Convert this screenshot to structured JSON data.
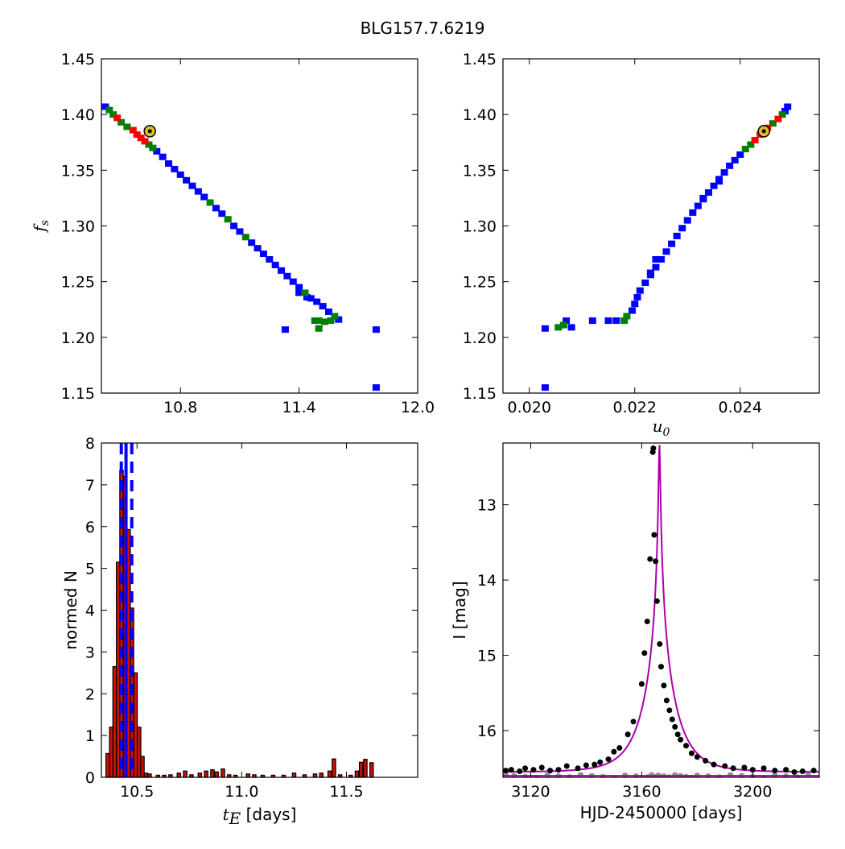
{
  "figure_title": "BLG157.7.6219",
  "chart_data": [
    {
      "id": "panel-tl",
      "type": "scatter",
      "title": "",
      "xlabel": "",
      "ylabel": "f_s",
      "ylabel_main": "f",
      "ylabel_sub": "s",
      "xlim": [
        10.4,
        12.0
      ],
      "ylim": [
        1.15,
        1.45
      ],
      "xticks": [
        10.8,
        11.4,
        12.0
      ],
      "xtick_labels": [
        "10.8",
        "11.4",
        "12.0"
      ],
      "yticks": [
        1.15,
        1.2,
        1.25,
        1.3,
        1.35,
        1.4,
        1.45
      ],
      "ytick_labels": [
        "1.15",
        "1.20",
        "1.25",
        "1.30",
        "1.35",
        "1.40",
        "1.45"
      ],
      "confidence_colors": {
        "1sigma": "#ff0000",
        "2sigma": "#008000",
        "3sigma": "#0000ff"
      },
      "best_fit_marker_color": "#e0c020",
      "best_fit": {
        "x": 10.645,
        "y": 1.385
      },
      "points": [
        {
          "x": 10.42,
          "y": 1.407,
          "c": 3
        },
        {
          "x": 10.44,
          "y": 1.404,
          "c": 2
        },
        {
          "x": 10.46,
          "y": 1.4,
          "c": 2
        },
        {
          "x": 10.48,
          "y": 1.397,
          "c": 1
        },
        {
          "x": 10.5,
          "y": 1.393,
          "c": 2
        },
        {
          "x": 10.53,
          "y": 1.389,
          "c": 2
        },
        {
          "x": 10.56,
          "y": 1.386,
          "c": 1
        },
        {
          "x": 10.58,
          "y": 1.382,
          "c": 1
        },
        {
          "x": 10.6,
          "y": 1.379,
          "c": 1
        },
        {
          "x": 10.62,
          "y": 1.376,
          "c": 1
        },
        {
          "x": 10.64,
          "y": 1.373,
          "c": 2
        },
        {
          "x": 10.66,
          "y": 1.37,
          "c": 2
        },
        {
          "x": 10.68,
          "y": 1.367,
          "c": 3
        },
        {
          "x": 10.71,
          "y": 1.362,
          "c": 3
        },
        {
          "x": 10.74,
          "y": 1.356,
          "c": 3
        },
        {
          "x": 10.77,
          "y": 1.351,
          "c": 3
        },
        {
          "x": 10.8,
          "y": 1.346,
          "c": 3
        },
        {
          "x": 10.83,
          "y": 1.341,
          "c": 3
        },
        {
          "x": 10.86,
          "y": 1.336,
          "c": 3
        },
        {
          "x": 10.89,
          "y": 1.331,
          "c": 3
        },
        {
          "x": 10.92,
          "y": 1.326,
          "c": 3
        },
        {
          "x": 10.95,
          "y": 1.321,
          "c": 2
        },
        {
          "x": 10.98,
          "y": 1.316,
          "c": 3
        },
        {
          "x": 11.01,
          "y": 1.311,
          "c": 3
        },
        {
          "x": 11.04,
          "y": 1.306,
          "c": 2
        },
        {
          "x": 11.07,
          "y": 1.3,
          "c": 3
        },
        {
          "x": 11.1,
          "y": 1.295,
          "c": 3
        },
        {
          "x": 11.13,
          "y": 1.29,
          "c": 2
        },
        {
          "x": 11.16,
          "y": 1.285,
          "c": 3
        },
        {
          "x": 11.19,
          "y": 1.28,
          "c": 3
        },
        {
          "x": 11.22,
          "y": 1.275,
          "c": 3
        },
        {
          "x": 11.25,
          "y": 1.27,
          "c": 3
        },
        {
          "x": 11.28,
          "y": 1.265,
          "c": 3
        },
        {
          "x": 11.31,
          "y": 1.26,
          "c": 3
        },
        {
          "x": 11.34,
          "y": 1.255,
          "c": 3
        },
        {
          "x": 11.37,
          "y": 1.25,
          "c": 3
        },
        {
          "x": 11.4,
          "y": 1.245,
          "c": 3
        },
        {
          "x": 11.43,
          "y": 1.24,
          "c": 2
        },
        {
          "x": 11.46,
          "y": 1.235,
          "c": 3
        },
        {
          "x": 11.49,
          "y": 1.232,
          "c": 3
        },
        {
          "x": 11.52,
          "y": 1.228,
          "c": 3
        },
        {
          "x": 11.55,
          "y": 1.223,
          "c": 3
        },
        {
          "x": 11.58,
          "y": 1.219,
          "c": 2
        },
        {
          "x": 11.6,
          "y": 1.216,
          "c": 3
        },
        {
          "x": 11.4,
          "y": 1.24,
          "c": 3
        },
        {
          "x": 11.44,
          "y": 1.236,
          "c": 3
        },
        {
          "x": 11.53,
          "y": 1.214,
          "c": 2
        },
        {
          "x": 11.56,
          "y": 1.215,
          "c": 2
        },
        {
          "x": 11.48,
          "y": 1.215,
          "c": 2
        },
        {
          "x": 11.5,
          "y": 1.208,
          "c": 2
        },
        {
          "x": 11.5,
          "y": 1.215,
          "c": 2
        },
        {
          "x": 11.33,
          "y": 1.207,
          "c": 3
        },
        {
          "x": 11.79,
          "y": 1.207,
          "c": 3
        },
        {
          "x": 11.79,
          "y": 1.155,
          "c": 3
        }
      ]
    },
    {
      "id": "panel-tr",
      "type": "scatter",
      "title": "",
      "xlabel": "u_0",
      "xlabel_main": "u",
      "xlabel_sub": "0",
      "ylabel": "",
      "xlim": [
        0.0195,
        0.0255
      ],
      "ylim": [
        1.15,
        1.45
      ],
      "xticks": [
        0.02,
        0.022,
        0.024
      ],
      "xtick_labels": [
        "0.020",
        "0.022",
        "0.024"
      ],
      "yticks": [
        1.15,
        1.2,
        1.25,
        1.3,
        1.35,
        1.4,
        1.45
      ],
      "ytick_labels": [
        "1.15",
        "1.20",
        "1.25",
        "1.30",
        "1.35",
        "1.40",
        "1.45"
      ],
      "confidence_colors": {
        "1sigma": "#ff0000",
        "2sigma": "#008000",
        "3sigma": "#0000ff"
      },
      "best_fit_marker_color": "#e0c020",
      "best_fit": {
        "x": 0.02445,
        "y": 1.385
      },
      "points": [
        {
          "x": 0.0249,
          "y": 1.407,
          "c": 3
        },
        {
          "x": 0.02485,
          "y": 1.403,
          "c": 3
        },
        {
          "x": 0.0248,
          "y": 1.4,
          "c": 2
        },
        {
          "x": 0.02472,
          "y": 1.396,
          "c": 1
        },
        {
          "x": 0.02462,
          "y": 1.392,
          "c": 2
        },
        {
          "x": 0.02452,
          "y": 1.388,
          "c": 1
        },
        {
          "x": 0.02438,
          "y": 1.382,
          "c": 1
        },
        {
          "x": 0.02428,
          "y": 1.377,
          "c": 1
        },
        {
          "x": 0.0242,
          "y": 1.373,
          "c": 2
        },
        {
          "x": 0.0241,
          "y": 1.369,
          "c": 2
        },
        {
          "x": 0.024,
          "y": 1.364,
          "c": 3
        },
        {
          "x": 0.0239,
          "y": 1.359,
          "c": 3
        },
        {
          "x": 0.0238,
          "y": 1.354,
          "c": 3
        },
        {
          "x": 0.0237,
          "y": 1.348,
          "c": 3
        },
        {
          "x": 0.0236,
          "y": 1.342,
          "c": 3
        },
        {
          "x": 0.0235,
          "y": 1.336,
          "c": 3
        },
        {
          "x": 0.0234,
          "y": 1.33,
          "c": 3
        },
        {
          "x": 0.0233,
          "y": 1.324,
          "c": 3
        },
        {
          "x": 0.0232,
          "y": 1.318,
          "c": 3
        },
        {
          "x": 0.0231,
          "y": 1.312,
          "c": 3
        },
        {
          "x": 0.023,
          "y": 1.305,
          "c": 3
        },
        {
          "x": 0.0229,
          "y": 1.298,
          "c": 3
        },
        {
          "x": 0.0228,
          "y": 1.291,
          "c": 3
        },
        {
          "x": 0.0227,
          "y": 1.284,
          "c": 3
        },
        {
          "x": 0.0226,
          "y": 1.277,
          "c": 3
        },
        {
          "x": 0.0225,
          "y": 1.27,
          "c": 3
        },
        {
          "x": 0.0224,
          "y": 1.263,
          "c": 3
        },
        {
          "x": 0.0223,
          "y": 1.256,
          "c": 3
        },
        {
          "x": 0.0222,
          "y": 1.249,
          "c": 3
        },
        {
          "x": 0.0221,
          "y": 1.242,
          "c": 3
        },
        {
          "x": 0.02205,
          "y": 1.236,
          "c": 3
        },
        {
          "x": 0.022,
          "y": 1.23,
          "c": 3
        },
        {
          "x": 0.02195,
          "y": 1.224,
          "c": 3
        },
        {
          "x": 0.02185,
          "y": 1.219,
          "c": 2
        },
        {
          "x": 0.0218,
          "y": 1.215,
          "c": 2
        },
        {
          "x": 0.02165,
          "y": 1.215,
          "c": 3
        },
        {
          "x": 0.0215,
          "y": 1.215,
          "c": 3
        },
        {
          "x": 0.0223,
          "y": 1.258,
          "c": 3
        },
        {
          "x": 0.0224,
          "y": 1.27,
          "c": 3
        },
        {
          "x": 0.0233,
          "y": 1.325,
          "c": 3
        },
        {
          "x": 0.0236,
          "y": 1.34,
          "c": 3
        },
        {
          "x": 0.0207,
          "y": 1.215,
          "c": 3
        },
        {
          "x": 0.02065,
          "y": 1.211,
          "c": 2
        },
        {
          "x": 0.0208,
          "y": 1.209,
          "c": 3
        },
        {
          "x": 0.02055,
          "y": 1.209,
          "c": 2
        },
        {
          "x": 0.0203,
          "y": 1.208,
          "c": 3
        },
        {
          "x": 0.0203,
          "y": 1.155,
          "c": 3
        },
        {
          "x": 0.0212,
          "y": 1.215,
          "c": 3
        }
      ]
    },
    {
      "id": "panel-bl",
      "type": "bar",
      "title": "",
      "xlabel": "t_E [days]",
      "xlabel_main": "t",
      "xlabel_sub": "E",
      "xlabel_rest": " [days]",
      "ylabel": "normed N",
      "xlim": [
        10.33,
        11.84
      ],
      "ylim": [
        0,
        8
      ],
      "xticks": [
        10.5,
        11.0,
        11.5
      ],
      "xtick_labels": [
        "10.5",
        "11.0",
        "11.5"
      ],
      "yticks": [
        0,
        1,
        2,
        3,
        4,
        5,
        6,
        7,
        8
      ],
      "ytick_labels": [
        "0",
        "1",
        "2",
        "3",
        "4",
        "5",
        "6",
        "7",
        "8"
      ],
      "bar_color": "#cc1100",
      "line_color": "#0000ff",
      "bin_width": 0.0166,
      "bins": [
        {
          "x": 10.36,
          "v": 0.57
        },
        {
          "x": 10.377,
          "v": 1.2
        },
        {
          "x": 10.393,
          "v": 2.65
        },
        {
          "x": 10.41,
          "v": 5.15
        },
        {
          "x": 10.426,
          "v": 7.35
        },
        {
          "x": 10.443,
          "v": 7.2
        },
        {
          "x": 10.46,
          "v": 5.93
        },
        {
          "x": 10.476,
          "v": 4.05
        },
        {
          "x": 10.493,
          "v": 2.5
        },
        {
          "x": 10.51,
          "v": 1.2
        },
        {
          "x": 10.526,
          "v": 0.5
        },
        {
          "x": 10.543,
          "v": 0.1
        },
        {
          "x": 10.56,
          "v": 0.08
        },
        {
          "x": 10.6,
          "v": 0.05
        },
        {
          "x": 10.63,
          "v": 0.05
        },
        {
          "x": 10.66,
          "v": 0.06
        },
        {
          "x": 10.7,
          "v": 0.1
        },
        {
          "x": 10.73,
          "v": 0.15
        },
        {
          "x": 10.76,
          "v": 0.06
        },
        {
          "x": 10.8,
          "v": 0.1
        },
        {
          "x": 10.83,
          "v": 0.15
        },
        {
          "x": 10.86,
          "v": 0.18
        },
        {
          "x": 10.88,
          "v": 0.13
        },
        {
          "x": 10.91,
          "v": 0.2
        },
        {
          "x": 10.94,
          "v": 0.06
        },
        {
          "x": 10.97,
          "v": 0.05
        },
        {
          "x": 11.03,
          "v": 0.08
        },
        {
          "x": 11.06,
          "v": 0.06
        },
        {
          "x": 11.1,
          "v": 0.05
        },
        {
          "x": 11.15,
          "v": 0.05
        },
        {
          "x": 11.2,
          "v": 0.05
        },
        {
          "x": 11.25,
          "v": 0.1
        },
        {
          "x": 11.3,
          "v": 0.06
        },
        {
          "x": 11.35,
          "v": 0.08
        },
        {
          "x": 11.38,
          "v": 0.1
        },
        {
          "x": 11.42,
          "v": 0.15
        },
        {
          "x": 11.44,
          "v": 0.44
        },
        {
          "x": 11.47,
          "v": 0.06
        },
        {
          "x": 11.52,
          "v": 0.05
        },
        {
          "x": 11.55,
          "v": 0.15
        },
        {
          "x": 11.57,
          "v": 0.36
        },
        {
          "x": 11.59,
          "v": 0.43
        },
        {
          "x": 11.62,
          "v": 0.35
        }
      ],
      "vlines": [
        {
          "x": 10.4475,
          "style": "solid"
        },
        {
          "x": 10.425,
          "style": "dashed"
        },
        {
          "x": 10.475,
          "style": "dashed"
        }
      ]
    },
    {
      "id": "panel-br",
      "type": "line",
      "title": "",
      "xlabel": "HJD-2450000 [days]",
      "ylabel": "I [mag]",
      "xlim": [
        3110,
        3224
      ],
      "ylim": [
        16.62,
        12.18
      ],
      "y_inverted": true,
      "xticks": [
        3120,
        3160,
        3200
      ],
      "xtick_labels": [
        "3120",
        "3160",
        "3200"
      ],
      "yticks": [
        13,
        14,
        15,
        16
      ],
      "ytick_labels": [
        "13",
        "14",
        "15",
        "16"
      ],
      "model_color": "#aa00aa",
      "data_color": "#000000",
      "residual_color": "#909090",
      "model": {
        "t0": 3166.4,
        "peak_mag": 12.2,
        "baseline": 16.55,
        "u0": 0.0244,
        "tE": 10.45
      },
      "baseline_line": 16.6,
      "data": [
        {
          "x": 3111,
          "y": 16.53
        },
        {
          "x": 3113,
          "y": 16.52
        },
        {
          "x": 3116,
          "y": 16.54
        },
        {
          "x": 3118,
          "y": 16.5
        },
        {
          "x": 3121,
          "y": 16.52
        },
        {
          "x": 3124,
          "y": 16.49
        },
        {
          "x": 3127,
          "y": 16.53
        },
        {
          "x": 3130,
          "y": 16.52
        },
        {
          "x": 3133,
          "y": 16.47
        },
        {
          "x": 3137,
          "y": 16.5
        },
        {
          "x": 3140,
          "y": 16.46
        },
        {
          "x": 3143,
          "y": 16.45
        },
        {
          "x": 3145,
          "y": 16.42
        },
        {
          "x": 3148,
          "y": 16.38
        },
        {
          "x": 3150,
          "y": 16.28
        },
        {
          "x": 3152,
          "y": 16.23
        },
        {
          "x": 3155,
          "y": 16.05
        },
        {
          "x": 3157,
          "y": 15.88
        },
        {
          "x": 3160,
          "y": 15.38
        },
        {
          "x": 3161,
          "y": 14.97
        },
        {
          "x": 3162,
          "y": 14.55
        },
        {
          "x": 3163,
          "y": 13.72
        },
        {
          "x": 3164,
          "y": 12.3
        },
        {
          "x": 3164.2,
          "y": 12.25
        },
        {
          "x": 3164.5,
          "y": 13.4
        },
        {
          "x": 3165,
          "y": 13.75
        },
        {
          "x": 3165.5,
          "y": 14.28
        },
        {
          "x": 3166.5,
          "y": 14.85
        },
        {
          "x": 3167,
          "y": 15.15
        },
        {
          "x": 3168,
          "y": 15.4
        },
        {
          "x": 3169,
          "y": 15.6
        },
        {
          "x": 3170,
          "y": 15.73
        },
        {
          "x": 3171,
          "y": 15.85
        },
        {
          "x": 3172,
          "y": 15.95
        },
        {
          "x": 3173,
          "y": 16.05
        },
        {
          "x": 3174,
          "y": 16.12
        },
        {
          "x": 3176,
          "y": 16.2
        },
        {
          "x": 3178,
          "y": 16.3
        },
        {
          "x": 3180,
          "y": 16.35
        },
        {
          "x": 3183,
          "y": 16.4
        },
        {
          "x": 3186,
          "y": 16.45
        },
        {
          "x": 3190,
          "y": 16.47
        },
        {
          "x": 3193,
          "y": 16.5
        },
        {
          "x": 3197,
          "y": 16.49
        },
        {
          "x": 3200,
          "y": 16.52
        },
        {
          "x": 3204,
          "y": 16.5
        },
        {
          "x": 3208,
          "y": 16.53
        },
        {
          "x": 3212,
          "y": 16.52
        },
        {
          "x": 3215,
          "y": 16.55
        },
        {
          "x": 3218,
          "y": 16.54
        },
        {
          "x": 3222,
          "y": 16.53
        }
      ],
      "residuals_mag": 16.6,
      "residuals_x": [
        3111,
        3114,
        3118,
        3122,
        3126,
        3130,
        3134,
        3138,
        3142,
        3146,
        3150,
        3154,
        3158,
        3162,
        3163.5,
        3164,
        3164.5,
        3165,
        3166,
        3168,
        3170,
        3172,
        3174,
        3176,
        3178,
        3180,
        3184,
        3188,
        3192,
        3196,
        3200,
        3204,
        3208,
        3212,
        3216,
        3220
      ]
    }
  ]
}
